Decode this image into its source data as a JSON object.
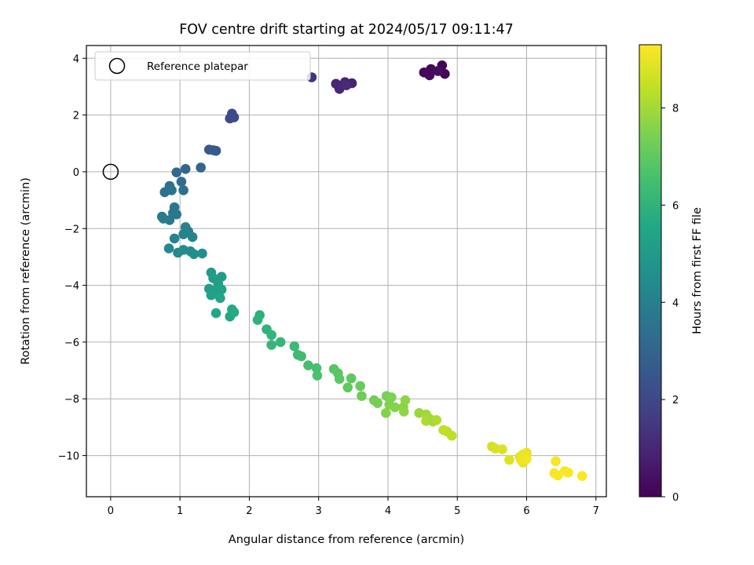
{
  "chart_data": {
    "type": "scatter",
    "title": "FOV centre drift starting at 2024/05/17 09:11:47",
    "xlabel": "Angular distance from reference (arcmin)",
    "ylabel": "Rotation from reference (arcmin)",
    "xlim": [
      -0.35,
      7.15
    ],
    "ylim": [
      -11.45,
      4.45
    ],
    "xticks": [
      0,
      1,
      2,
      3,
      4,
      5,
      6,
      7
    ],
    "yticks": [
      4,
      2,
      0,
      -2,
      -4,
      -6,
      -8,
      -10
    ],
    "grid": true,
    "legend": {
      "placement": "top-left",
      "entries": [
        "Reference platepar"
      ]
    },
    "reference_point": {
      "x": 0,
      "y": 0,
      "label": "Reference platepar"
    },
    "colorbar": {
      "label": "Hours from first FF file",
      "range": [
        0,
        9.3
      ],
      "ticks": [
        0,
        2,
        4,
        6,
        8
      ],
      "colormap": "viridis"
    },
    "points": [
      [
        4.78,
        3.75,
        0.05
      ],
      [
        4.82,
        3.45,
        0.1
      ],
      [
        4.62,
        3.62,
        0.15
      ],
      [
        4.52,
        3.5,
        0.2
      ],
      [
        4.6,
        3.4,
        0.25
      ],
      [
        4.72,
        3.55,
        0.3
      ],
      [
        3.48,
        3.12,
        0.9
      ],
      [
        3.38,
        3.16,
        0.95
      ],
      [
        3.25,
        3.1,
        1.0
      ],
      [
        3.3,
        2.92,
        1.05
      ],
      [
        3.4,
        3.05,
        1.1
      ],
      [
        2.9,
        3.33,
        1.4
      ],
      [
        1.75,
        2.05,
        2.0
      ],
      [
        1.78,
        1.92,
        2.05
      ],
      [
        1.72,
        1.88,
        2.1
      ],
      [
        1.42,
        0.78,
        2.6
      ],
      [
        1.48,
        0.76,
        2.65
      ],
      [
        1.52,
        0.74,
        2.7
      ],
      [
        1.3,
        0.15,
        3.0
      ],
      [
        1.08,
        0.1,
        3.1
      ],
      [
        0.95,
        -0.02,
        3.2
      ],
      [
        1.02,
        -0.35,
        3.3
      ],
      [
        0.85,
        -0.5,
        3.35
      ],
      [
        1.05,
        -0.65,
        3.4
      ],
      [
        0.78,
        -0.72,
        3.45
      ],
      [
        0.88,
        -0.65,
        3.5
      ],
      [
        0.92,
        -1.25,
        3.6
      ],
      [
        0.9,
        -1.45,
        3.65
      ],
      [
        0.95,
        -1.5,
        3.7
      ],
      [
        0.74,
        -1.58,
        3.75
      ],
      [
        0.85,
        -1.7,
        3.8
      ],
      [
        0.76,
        -1.65,
        3.85
      ],
      [
        1.08,
        -1.95,
        4.0
      ],
      [
        1.12,
        -2.1,
        4.05
      ],
      [
        1.05,
        -2.2,
        4.1
      ],
      [
        0.92,
        -2.35,
        4.15
      ],
      [
        1.18,
        -2.3,
        4.2
      ],
      [
        0.84,
        -2.7,
        4.35
      ],
      [
        0.97,
        -2.85,
        4.4
      ],
      [
        1.05,
        -2.75,
        4.45
      ],
      [
        1.15,
        -2.8,
        4.5
      ],
      [
        1.2,
        -2.9,
        4.55
      ],
      [
        1.32,
        -2.88,
        4.6
      ],
      [
        1.45,
        -3.55,
        5.0
      ],
      [
        1.6,
        -3.7,
        5.05
      ],
      [
        1.48,
        -3.75,
        5.1
      ],
      [
        1.55,
        -3.95,
        5.15
      ],
      [
        1.42,
        -4.12,
        5.2
      ],
      [
        1.5,
        -4.2,
        5.25
      ],
      [
        1.6,
        -4.15,
        5.3
      ],
      [
        1.45,
        -4.35,
        5.35
      ],
      [
        1.58,
        -4.45,
        5.4
      ],
      [
        1.52,
        -4.98,
        5.5
      ],
      [
        1.72,
        -5.1,
        5.55
      ],
      [
        1.75,
        -4.85,
        5.6
      ],
      [
        1.78,
        -4.95,
        5.65
      ],
      [
        2.15,
        -5.05,
        5.9
      ],
      [
        2.12,
        -5.22,
        5.95
      ],
      [
        2.25,
        -5.55,
        6.0
      ],
      [
        2.32,
        -5.75,
        6.05
      ],
      [
        2.32,
        -6.1,
        6.1
      ],
      [
        2.45,
        -6.0,
        6.15
      ],
      [
        2.65,
        -6.15,
        6.3
      ],
      [
        2.7,
        -6.45,
        6.35
      ],
      [
        2.75,
        -6.5,
        6.4
      ],
      [
        2.85,
        -6.82,
        6.5
      ],
      [
        2.97,
        -6.92,
        6.55
      ],
      [
        2.98,
        -7.18,
        6.6
      ],
      [
        3.22,
        -6.95,
        6.8
      ],
      [
        3.28,
        -7.1,
        6.85
      ],
      [
        3.3,
        -7.3,
        6.9
      ],
      [
        3.42,
        -7.6,
        6.95
      ],
      [
        3.47,
        -7.28,
        7.0
      ],
      [
        3.6,
        -7.55,
        7.15
      ],
      [
        3.62,
        -7.9,
        7.2
      ],
      [
        3.8,
        -8.05,
        7.3
      ],
      [
        3.85,
        -8.15,
        7.35
      ],
      [
        3.98,
        -7.9,
        7.4
      ],
      [
        4.05,
        -7.95,
        7.45
      ],
      [
        4.02,
        -8.2,
        7.5
      ],
      [
        3.97,
        -8.5,
        7.55
      ],
      [
        4.1,
        -8.3,
        7.6
      ],
      [
        4.22,
        -8.3,
        7.65
      ],
      [
        4.25,
        -8.05,
        7.7
      ],
      [
        4.23,
        -8.45,
        7.75
      ],
      [
        4.45,
        -8.5,
        7.9
      ],
      [
        4.55,
        -8.55,
        7.95
      ],
      [
        4.6,
        -8.7,
        8.0
      ],
      [
        4.65,
        -8.8,
        8.05
      ],
      [
        4.55,
        -8.78,
        8.1
      ],
      [
        4.7,
        -8.75,
        8.15
      ],
      [
        4.85,
        -9.15,
        8.3
      ],
      [
        4.92,
        -9.3,
        8.35
      ],
      [
        4.8,
        -9.1,
        8.4
      ],
      [
        5.5,
        -9.68,
        8.7
      ],
      [
        5.55,
        -9.75,
        8.75
      ],
      [
        5.65,
        -9.78,
        8.8
      ],
      [
        5.75,
        -10.15,
        8.85
      ],
      [
        5.9,
        -10.05,
        8.9
      ],
      [
        5.95,
        -10.25,
        8.95
      ],
      [
        6.0,
        -9.9,
        9.0
      ],
      [
        5.95,
        -9.95,
        9.05
      ],
      [
        5.92,
        -10.15,
        9.1
      ],
      [
        6.0,
        -10.12,
        9.15
      ],
      [
        6.42,
        -10.2,
        9.2
      ],
      [
        6.4,
        -10.62,
        9.22
      ],
      [
        6.45,
        -10.7,
        9.24
      ],
      [
        6.55,
        -10.55,
        9.26
      ],
      [
        6.6,
        -10.6,
        9.28
      ],
      [
        6.8,
        -10.72,
        9.3
      ]
    ]
  }
}
